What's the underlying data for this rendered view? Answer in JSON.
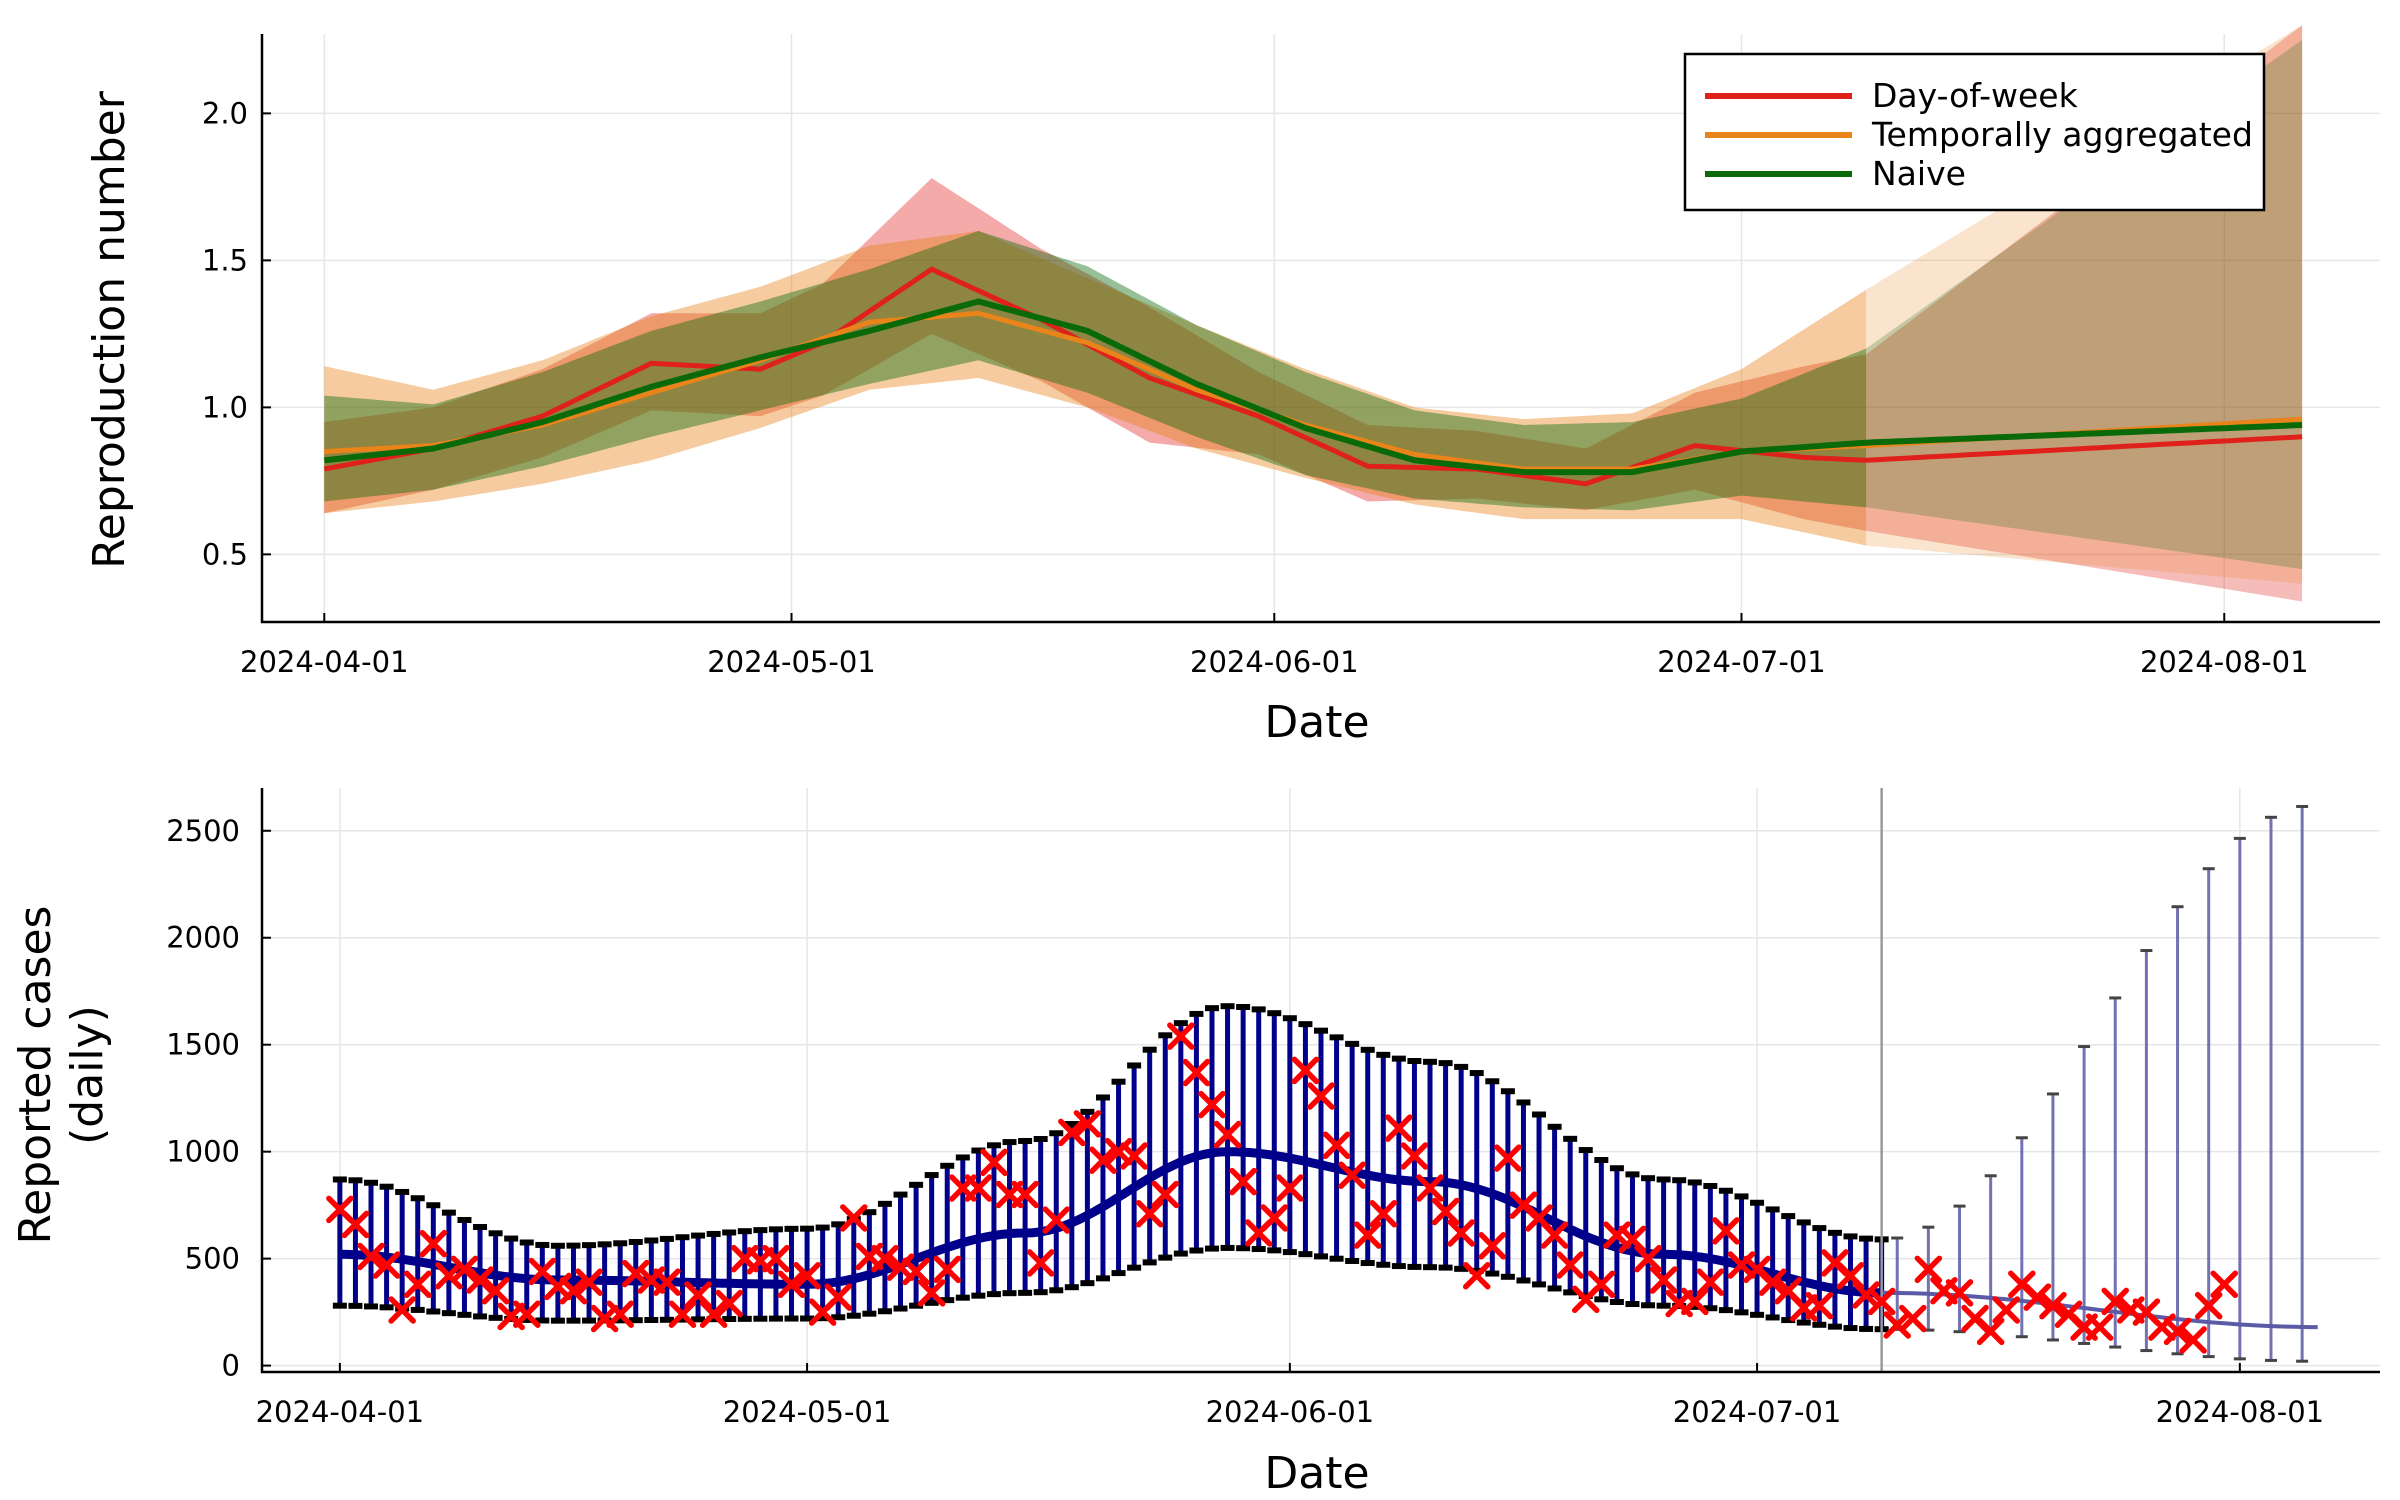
{
  "chart_data": [
    {
      "type": "line",
      "title": "",
      "xlabel": "Date",
      "ylabel": "Reproduction number",
      "xlim": [
        "2024-03-28",
        "2024-08-11"
      ],
      "ylim": [
        0.27,
        2.27
      ],
      "x_ticks": [
        "2024-04-01",
        "2024-05-01",
        "2024-06-01",
        "2024-07-01",
        "2024-08-01"
      ],
      "y_ticks": [
        "0.5",
        "1.0",
        "1.5",
        "2.0"
      ],
      "y_tick_values": [
        0.5,
        1.0,
        1.5,
        2.0
      ],
      "grid": true,
      "legend_position": "top-right",
      "nowcast_end": "2024-07-09",
      "forecast_end": "2024-08-06",
      "series": [
        {
          "name": "Day-of-week",
          "color": "#e0201b",
          "x": [
            "2024-04-01",
            "2024-04-08",
            "2024-04-15",
            "2024-04-22",
            "2024-04-29",
            "2024-05-03",
            "2024-05-10",
            "2024-05-17",
            "2024-05-24",
            "2024-05-31",
            "2024-06-07",
            "2024-06-14",
            "2024-06-21",
            "2024-06-28",
            "2024-07-05",
            "2024-07-09",
            "2024-08-06"
          ],
          "mean": [
            0.79,
            0.86,
            0.97,
            1.15,
            1.13,
            1.22,
            1.47,
            1.3,
            1.1,
            0.97,
            0.8,
            0.79,
            0.74,
            0.87,
            0.83,
            0.82,
            0.9
          ],
          "lower": [
            0.64,
            0.72,
            0.83,
            0.99,
            0.97,
            1.04,
            1.25,
            1.09,
            0.88,
            0.84,
            0.68,
            0.69,
            0.65,
            0.72,
            0.62,
            0.58,
            0.34
          ],
          "upper": [
            0.95,
            1.0,
            1.13,
            1.32,
            1.32,
            1.42,
            1.78,
            1.54,
            1.34,
            1.12,
            0.94,
            0.92,
            0.86,
            1.05,
            1.14,
            1.18,
            2.3
          ]
        },
        {
          "name": "Temporally aggregated",
          "color": "#e8841a",
          "x": [
            "2024-04-01",
            "2024-04-08",
            "2024-04-15",
            "2024-04-22",
            "2024-04-29",
            "2024-05-06",
            "2024-05-13",
            "2024-05-20",
            "2024-05-27",
            "2024-06-03",
            "2024-06-10",
            "2024-06-17",
            "2024-06-24",
            "2024-07-01",
            "2024-07-09",
            "2024-08-06"
          ],
          "mean": [
            0.85,
            0.87,
            0.94,
            1.05,
            1.16,
            1.29,
            1.32,
            1.22,
            1.06,
            0.94,
            0.84,
            0.79,
            0.79,
            0.85,
            0.87,
            0.96
          ],
          "lower": [
            0.64,
            0.68,
            0.74,
            0.82,
            0.93,
            1.06,
            1.1,
            1.0,
            0.86,
            0.76,
            0.67,
            0.62,
            0.62,
            0.62,
            0.53,
            0.4
          ],
          "upper": [
            1.14,
            1.06,
            1.16,
            1.31,
            1.41,
            1.55,
            1.6,
            1.44,
            1.28,
            1.13,
            1.0,
            0.96,
            0.98,
            1.13,
            1.4,
            2.3
          ]
        },
        {
          "name": "Naive",
          "color": "#0a6a0a",
          "x": [
            "2024-04-01",
            "2024-04-08",
            "2024-04-15",
            "2024-04-22",
            "2024-04-29",
            "2024-05-06",
            "2024-05-13",
            "2024-05-20",
            "2024-05-27",
            "2024-06-03",
            "2024-06-10",
            "2024-06-17",
            "2024-06-24",
            "2024-07-01",
            "2024-07-09",
            "2024-08-06"
          ],
          "mean": [
            0.82,
            0.86,
            0.95,
            1.07,
            1.17,
            1.26,
            1.36,
            1.26,
            1.08,
            0.93,
            0.82,
            0.78,
            0.78,
            0.85,
            0.88,
            0.94
          ],
          "lower": [
            0.68,
            0.72,
            0.8,
            0.9,
            0.99,
            1.08,
            1.16,
            1.05,
            0.9,
            0.77,
            0.69,
            0.66,
            0.65,
            0.7,
            0.66,
            0.45
          ],
          "upper": [
            1.04,
            1.01,
            1.12,
            1.26,
            1.36,
            1.47,
            1.6,
            1.48,
            1.28,
            1.12,
            0.99,
            0.94,
            0.95,
            1.03,
            1.2,
            2.25
          ]
        }
      ]
    },
    {
      "type": "scatter",
      "title": "",
      "xlabel": "Date",
      "ylabel_lines": [
        "Reported cases",
        "(daily)"
      ],
      "xlim": [
        "2024-03-27",
        "2024-08-10"
      ],
      "ylim": [
        -30,
        2700
      ],
      "x_ticks": [
        "2024-04-01",
        "2024-05-01",
        "2024-06-01",
        "2024-07-01",
        "2024-08-01"
      ],
      "y_ticks": [
        "0",
        "500",
        "1000",
        "1500",
        "2000",
        "2500"
      ],
      "y_tick_values": [
        0,
        500,
        1000,
        1500,
        2000,
        2500
      ],
      "grid": true,
      "nowcast_end": "2024-07-09",
      "start_date": "2024-04-01",
      "end_date": "2024-08-06",
      "colors": {
        "interval": "#00008b",
        "forecast_interval": "#5a5aa6",
        "observed": "#ff0000",
        "cap": "#000000",
        "divider": "#999999"
      },
      "median_curve": {
        "x": [
          "2024-04-01",
          "2024-04-15",
          "2024-05-01",
          "2024-05-15",
          "2024-05-28",
          "2024-06-10",
          "2024-06-25",
          "2024-07-09",
          "2024-08-06"
        ],
        "y": [
          520,
          400,
          380,
          620,
          1000,
          860,
          520,
          340,
          180
        ]
      },
      "lower_curve": {
        "x": [
          "2024-04-01",
          "2024-04-15",
          "2024-05-01",
          "2024-05-15",
          "2024-05-28",
          "2024-06-10",
          "2024-06-25",
          "2024-07-09",
          "2024-08-06"
        ],
        "y": [
          280,
          210,
          220,
          340,
          550,
          460,
          280,
          170,
          20
        ]
      },
      "upper_curve": {
        "x": [
          "2024-04-01",
          "2024-04-15",
          "2024-05-01",
          "2024-05-15",
          "2024-05-28",
          "2024-06-10",
          "2024-06-25",
          "2024-07-09",
          "2024-08-06"
        ],
        "y": [
          870,
          560,
          640,
          1050,
          1680,
          1420,
          870,
          590,
          2620
        ]
      },
      "observed": [
        730,
        660,
        510,
        470,
        260,
        380,
        570,
        420,
        450,
        400,
        350,
        230,
        240,
        440,
        370,
        350,
        390,
        220,
        240,
        430,
        400,
        390,
        240,
        330,
        240,
        290,
        500,
        490,
        500,
        380,
        420,
        250,
        320,
        690,
        510,
        500,
        460,
        440,
        340,
        450,
        830,
        830,
        950,
        800,
        800,
        480,
        680,
        1090,
        1130,
        960,
        1000,
        980,
        710,
        800,
        1540,
        1370,
        1220,
        1080,
        860,
        620,
        690,
        830,
        1380,
        1260,
        1030,
        890,
        610,
        710,
        1110,
        980,
        830,
        720,
        620,
        420,
        560,
        970,
        750,
        690,
        610,
        470,
        310,
        380,
        610,
        590,
        500,
        400,
        290,
        300,
        390,
        630,
        470,
        450,
        390,
        350,
        270,
        280,
        480,
        420,
        330,
        300,
        190,
        220,
        450,
        350,
        340,
        220,
        160,
        260,
        380,
        320,
        280,
        240,
        180,
        180,
        300,
        260,
        250,
        180,
        160,
        120,
        280,
        380
      ]
    }
  ]
}
